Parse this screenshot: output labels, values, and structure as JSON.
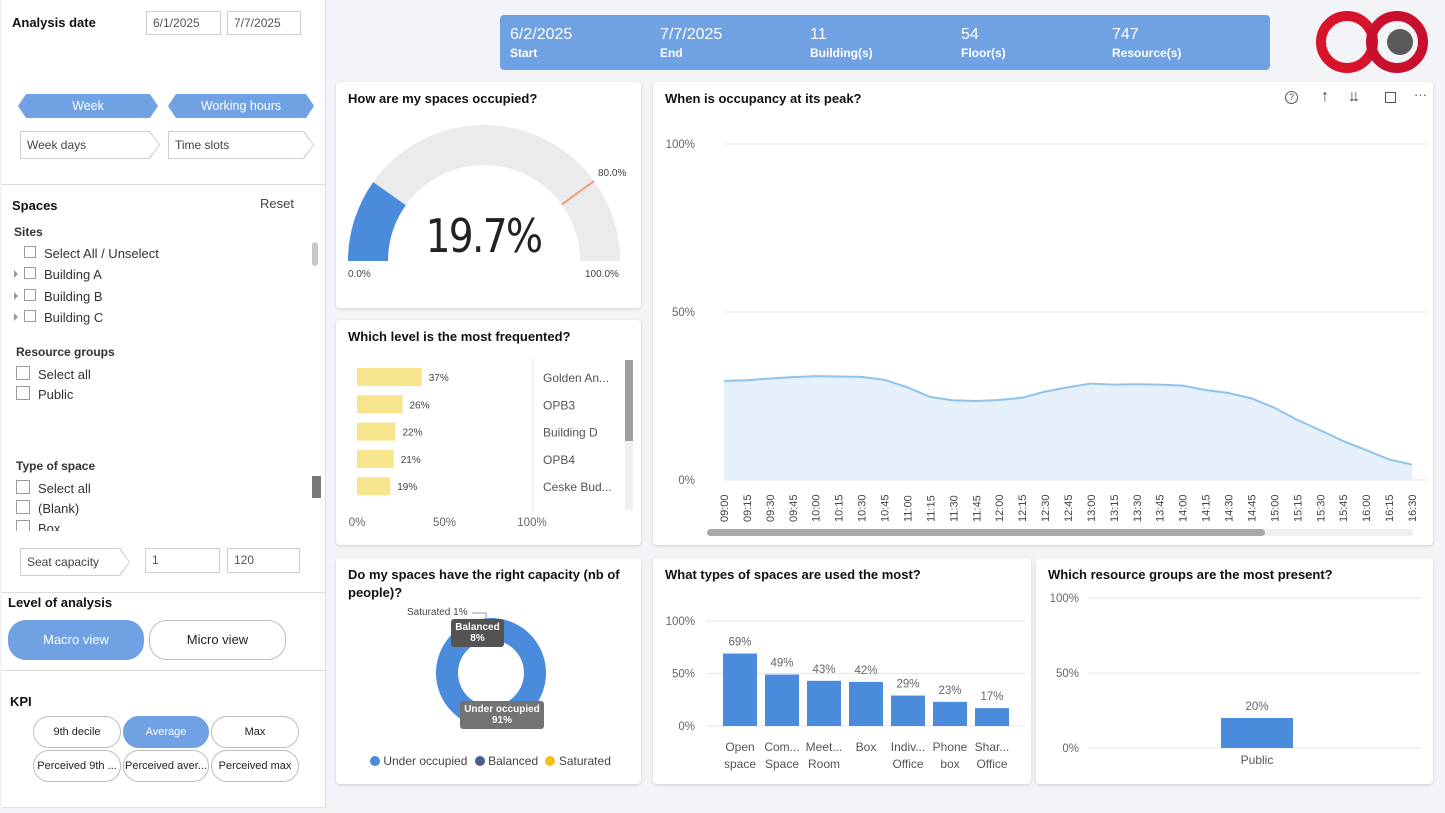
{
  "filters": {
    "analysis_date_label": "Analysis date",
    "date_from": "6/1/2025",
    "date_to": "7/7/2025",
    "week_button": "Week",
    "working_hours_button": "Working hours",
    "week_days_label": "Week days",
    "time_slots_label": "Time slots"
  },
  "spaces": {
    "title": "Spaces",
    "reset": "Reset",
    "sites_label": "Sites",
    "sites": [
      "Select All / Unselect",
      "Building A",
      "Building B",
      "Building C"
    ],
    "resource_groups_label": "Resource groups",
    "resource_groups": [
      "Select all",
      "Public"
    ],
    "type_label": "Type of space",
    "types": [
      "Select all",
      "(Blank)",
      "Box"
    ],
    "seat_capacity_label": "Seat capacity",
    "seat_min": "1",
    "seat_max": "120"
  },
  "analysis": {
    "title": "Level of analysis",
    "macro": "Macro view",
    "micro": "Micro view"
  },
  "kpi": {
    "title": "KPI",
    "buttons": [
      "9th decile",
      "Average",
      "Max",
      "Perceived 9th ...",
      "Perceived aver...",
      "Perceived max"
    ],
    "active": "Average"
  },
  "banner": {
    "start_value": "6/2/2025",
    "start_label": "Start",
    "end_value": "7/7/2025",
    "end_label": "End",
    "buildings_value": "11",
    "buildings_label": "Building(s)",
    "floors_value": "54",
    "floors_label": "Floor(s)",
    "resources_value": "747",
    "resources_label": "Resource(s)"
  },
  "colors": {
    "accent": "#6fa1e3",
    "blue": "#4a8bdc",
    "yellow": "#f7e58e",
    "logo_red": "#d9132b",
    "navy": "#4b5e8f",
    "gold": "#f2c21b"
  },
  "gauge": {
    "title": "How are my spaces occupied?",
    "value_text": "19.7%",
    "min_label": "0.0%",
    "max_label": "100.0%",
    "target_label": "80.0%"
  },
  "levels": {
    "title": "Which level is the most frequented?",
    "xticks": [
      "0%",
      "50%",
      "100%"
    ]
  },
  "peak": {
    "title": "When is occupancy at its peak?",
    "yticks": [
      "100%",
      "50%",
      "0%"
    ]
  },
  "capacity": {
    "title": "Do my spaces have the right capacity (nb of people)?",
    "saturated_label": "Saturated 1%",
    "balanced_label": "Balanced",
    "balanced_pct": "8%",
    "under_label": "Under occupied",
    "under_pct": "91%",
    "legend": [
      "Under occupied",
      "Balanced",
      "Saturated"
    ]
  },
  "types_chart": {
    "title": "What types of spaces are used the most?",
    "yticks": [
      "100%",
      "50%",
      "0%"
    ],
    "labels": [
      [
        "Open",
        "space"
      ],
      [
        "Com...",
        "Space"
      ],
      [
        "Meet...",
        "Room"
      ],
      [
        "Box",
        ""
      ],
      [
        "Indiv...",
        "Office"
      ],
      [
        "Phone",
        "box"
      ],
      [
        "Shar...",
        "Office"
      ]
    ]
  },
  "groups_chart": {
    "title": "Which resource groups are the most present?",
    "yticks": [
      "100%",
      "50%",
      "0%"
    ]
  },
  "chart_data": [
    {
      "type": "bar",
      "title": "Which level is the most frequented?",
      "orientation": "horizontal",
      "categories": [
        "Golden An...",
        "OPB3",
        "Building D",
        "OPB4",
        "Ceske Bud..."
      ],
      "values": [
        37,
        26,
        22,
        21,
        19
      ],
      "value_labels": [
        "37%",
        "26%",
        "22%",
        "21%",
        "19%"
      ],
      "xlim": [
        0,
        100
      ]
    },
    {
      "type": "area",
      "title": "When is occupancy at its peak?",
      "x": [
        "09:00",
        "09:15",
        "09:30",
        "09:45",
        "10:00",
        "10:15",
        "10:30",
        "10:45",
        "11:00",
        "11:15",
        "11:30",
        "11:45",
        "12:00",
        "12:15",
        "12:30",
        "12:45",
        "13:00",
        "13:15",
        "13:30",
        "13:45",
        "14:00",
        "14:15",
        "14:30",
        "14:45",
        "15:00",
        "15:15",
        "15:30",
        "15:45",
        "16:00",
        "16:15",
        "16:30"
      ],
      "values": [
        29.5,
        29.7,
        30.2,
        30.6,
        30.9,
        30.8,
        30.7,
        29.8,
        27.6,
        24.7,
        23.7,
        23.5,
        23.8,
        24.5,
        26.3,
        27.6,
        28.7,
        28.4,
        28.5,
        28.4,
        28.1,
        26.8,
        25.9,
        24.3,
        21.5,
        17.9,
        14.8,
        11.6,
        8.9,
        6.1,
        4.6
      ],
      "ylim": [
        0,
        100
      ]
    },
    {
      "type": "pie",
      "title": "Do my spaces have the right capacity (nb of people)?",
      "categories": [
        "Under occupied",
        "Balanced",
        "Saturated"
      ],
      "values": [
        91,
        8,
        1
      ]
    },
    {
      "type": "bar",
      "title": "What types of spaces are used the most?",
      "categories": [
        "Open space",
        "Com... Space",
        "Meet... Room",
        "Box",
        "Indiv... Office",
        "Phone box",
        "Shar... Office"
      ],
      "values": [
        69,
        49,
        43,
        42,
        29,
        23,
        17
      ],
      "value_labels": [
        "69%",
        "49%",
        "43%",
        "42%",
        "29%",
        "23%",
        "17%"
      ],
      "ylim": [
        0,
        100
      ]
    },
    {
      "type": "bar",
      "title": "Which resource groups are the most present?",
      "categories": [
        "Public"
      ],
      "values": [
        20
      ],
      "value_labels": [
        "20%"
      ],
      "ylim": [
        0,
        100
      ]
    },
    {
      "type": "gauge",
      "title": "How are my spaces occupied?",
      "value": 19.7,
      "min": 0,
      "max": 100,
      "target": 80
    }
  ]
}
